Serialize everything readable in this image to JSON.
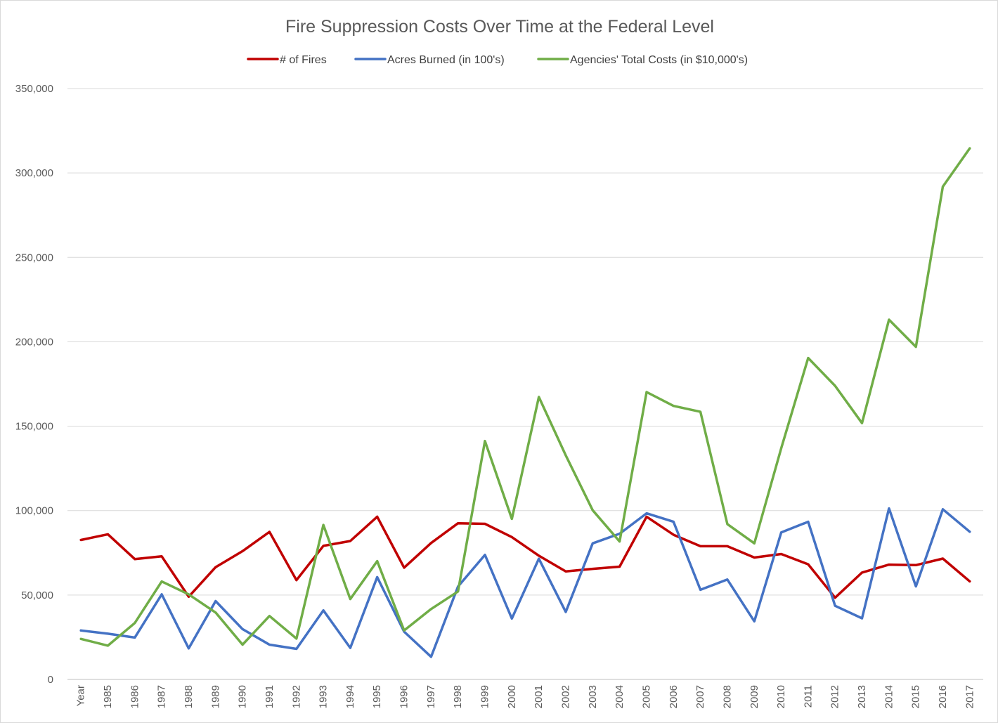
{
  "chart_data": {
    "type": "line",
    "title": "Fire Suppression Costs Over Time at the Federal Level",
    "xlabel": "",
    "ylabel": "",
    "ylim": [
      0,
      350000
    ],
    "yticks": [
      0,
      50000,
      100000,
      150000,
      200000,
      250000,
      300000,
      350000
    ],
    "ytick_labels": [
      "0",
      "50,000",
      "100,000",
      "150,000",
      "200,000",
      "250,000",
      "300,000",
      "350,000"
    ],
    "grid": true,
    "legend_position": "top",
    "categories": [
      "Year",
      "1985",
      "1986",
      "1987",
      "1988",
      "1989",
      "1990",
      "1991",
      "1992",
      "1993",
      "1994",
      "1995",
      "1996",
      "1997",
      "1998",
      "1999",
      "2000",
      "2001",
      "2002",
      "2003",
      "2004",
      "2005",
      "2006",
      "2007",
      "2008",
      "2009",
      "2010",
      "2011",
      "2012",
      "2013",
      "2014",
      "2015",
      "2016",
      "2017"
    ],
    "series": [
      {
        "name": "# of Fires",
        "color": "#c00000",
        "values": [
          82600,
          86000,
          71300,
          72900,
          49000,
          66500,
          76000,
          87400,
          58800,
          79100,
          82000,
          96400,
          66200,
          80800,
          92500,
          92200,
          84300,
          73300,
          64000,
          65500,
          66800,
          96400,
          85700,
          78900,
          78900,
          72200,
          74300,
          68200,
          48400,
          63300,
          68000,
          67700,
          71600,
          58100
        ]
      },
      {
        "name": "Acres Burned (in 100's)",
        "color": "#4472c4",
        "values": [
          29000,
          27100,
          24800,
          50400,
          18400,
          46400,
          29800,
          20600,
          18100,
          40900,
          18700,
          60600,
          28300,
          13400,
          55000,
          73800,
          36100,
          71500,
          40000,
          80600,
          86300,
          98400,
          93400,
          53100,
          59200,
          34400,
          87100,
          93400,
          43600,
          36200,
          101300,
          55100,
          100800,
          87500
        ]
      },
      {
        "name": "Agencies' Total Costs (in $10,000's)",
        "color": "#70ad47",
        "values": [
          24000,
          20000,
          33400,
          58000,
          50400,
          39600,
          20600,
          37600,
          24200,
          91500,
          47600,
          70100,
          29000,
          41700,
          52100,
          141200,
          95100,
          167300,
          132700,
          100200,
          81700,
          170200,
          162000,
          158500,
          92000,
          80600,
          137000,
          190400,
          173900,
          151800,
          213100,
          197000,
          291900,
          314600
        ]
      }
    ]
  }
}
